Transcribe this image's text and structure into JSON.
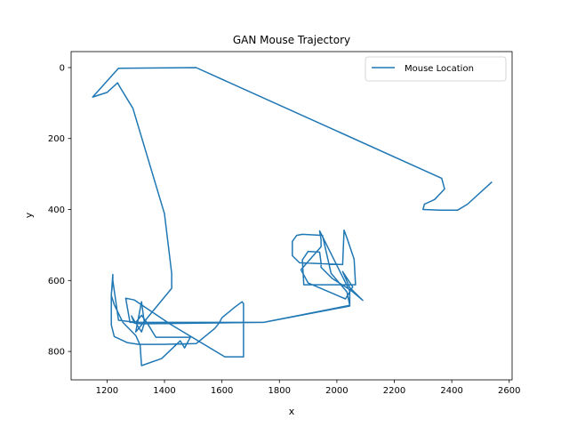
{
  "chart_data": {
    "type": "line",
    "title": "GAN Mouse Trajectory",
    "xlabel": "x",
    "ylabel": "y",
    "xlim": [
      1075,
      2610
    ],
    "ylim": [
      880,
      -45
    ],
    "y_inverted": true,
    "grid": false,
    "legend": "top-right",
    "x_ticks": [
      1200,
      1400,
      1600,
      1800,
      2000,
      2200,
      2400,
      2600
    ],
    "y_ticks": [
      0,
      200,
      400,
      600,
      800
    ],
    "colors": {
      "line": "#1f77b4",
      "axes": "#000000",
      "legend_border": "#cccccc"
    },
    "series": [
      {
        "name": "Mouse Location",
        "points": [
          [
            2540,
            322
          ],
          [
            2455,
            385
          ],
          [
            2420,
            402
          ],
          [
            2360,
            402
          ],
          [
            2300,
            400
          ],
          [
            2305,
            385
          ],
          [
            2340,
            372
          ],
          [
            2375,
            342
          ],
          [
            2365,
            312
          ],
          [
            1510,
            0
          ],
          [
            1240,
            2
          ],
          [
            1150,
            83
          ],
          [
            1200,
            70
          ],
          [
            1237,
            43
          ],
          [
            1245,
            55
          ],
          [
            1290,
            115
          ],
          [
            1400,
            412
          ],
          [
            1425,
            580
          ],
          [
            1425,
            622
          ],
          [
            1300,
            745
          ],
          [
            1320,
            660
          ],
          [
            1330,
            720
          ],
          [
            1320,
            745
          ],
          [
            1300,
            720
          ],
          [
            1285,
            700
          ],
          [
            1295,
            720
          ],
          [
            1320,
            722
          ],
          [
            1745,
            718
          ],
          [
            2045,
            672
          ],
          [
            2045,
            630
          ],
          [
            1940,
            460
          ],
          [
            1945,
            485
          ],
          [
            1945,
            505
          ],
          [
            1875,
            570
          ],
          [
            1900,
            607
          ],
          [
            2030,
            652
          ],
          [
            2055,
            618
          ],
          [
            2020,
            575
          ],
          [
            2045,
            620
          ],
          [
            2090,
            656
          ],
          [
            2050,
            628
          ],
          [
            1985,
            595
          ],
          [
            1945,
            563
          ],
          [
            1945,
            550
          ],
          [
            1940,
            520
          ],
          [
            1900,
            518
          ],
          [
            1880,
            542
          ],
          [
            1885,
            612
          ],
          [
            1915,
            612
          ],
          [
            2065,
            612
          ],
          [
            2060,
            540
          ],
          [
            2035,
            480
          ],
          [
            2025,
            458
          ],
          [
            2020,
            555
          ],
          [
            1870,
            550
          ],
          [
            1845,
            530
          ],
          [
            1845,
            490
          ],
          [
            1860,
            473
          ],
          [
            1880,
            470
          ],
          [
            1950,
            473
          ],
          [
            1980,
            580
          ],
          [
            2035,
            632
          ],
          [
            2045,
            670
          ],
          [
            1745,
            718
          ],
          [
            1720,
            718
          ],
          [
            1300,
            718
          ],
          [
            1240,
            712
          ],
          [
            1220,
            600
          ],
          [
            1220,
            583
          ],
          [
            1215,
            642
          ],
          [
            1225,
            668
          ],
          [
            1255,
            718
          ],
          [
            1300,
            755
          ],
          [
            1315,
            782
          ],
          [
            1320,
            840
          ],
          [
            1390,
            820
          ],
          [
            1455,
            770
          ],
          [
            1470,
            790
          ],
          [
            1490,
            760
          ],
          [
            1370,
            760
          ],
          [
            1340,
            720
          ],
          [
            1320,
            698
          ],
          [
            1300,
            718
          ],
          [
            1280,
            718
          ],
          [
            1265,
            650
          ],
          [
            1295,
            655
          ],
          [
            1420,
            723
          ],
          [
            1610,
            815
          ],
          [
            1675,
            815
          ],
          [
            1675,
            665
          ],
          [
            1670,
            660
          ],
          [
            1645,
            675
          ],
          [
            1600,
            705
          ],
          [
            1590,
            720
          ],
          [
            1575,
            735
          ],
          [
            1510,
            778
          ],
          [
            1390,
            780
          ],
          [
            1310,
            780
          ],
          [
            1270,
            775
          ],
          [
            1225,
            758
          ],
          [
            1215,
            725
          ],
          [
            1215,
            705
          ],
          [
            1215,
            685
          ],
          [
            1215,
            640
          ],
          [
            1220,
            600
          ]
        ]
      }
    ]
  }
}
